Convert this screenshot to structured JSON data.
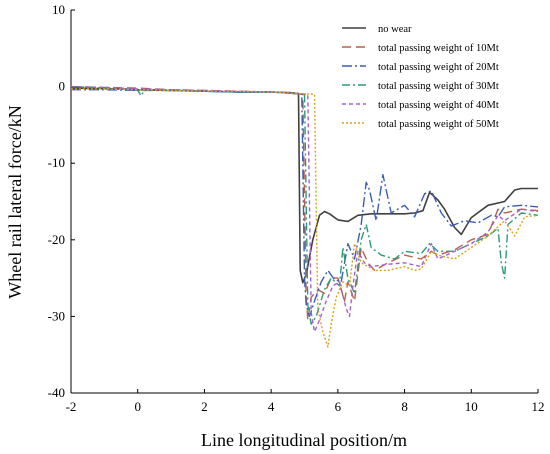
{
  "chart_data": {
    "type": "line",
    "title": "",
    "xlabel": "Line longitudinal position/m",
    "ylabel": "Wheel rail lateral force/kN",
    "xlim": [
      -2,
      12
    ],
    "ylim": [
      -40,
      10
    ],
    "xticks": [
      -2,
      0,
      2,
      4,
      6,
      8,
      10,
      12
    ],
    "yticks": [
      10,
      0,
      -10,
      -20,
      -30,
      -40
    ],
    "grid": false,
    "legend_position": "top-right",
    "series": [
      {
        "name": "no wear",
        "color": "#404040",
        "dash": "solid",
        "x": [
          -2,
          -0.5,
          0,
          1,
          2,
          3,
          4,
          4.6,
          4.82,
          4.87,
          4.95,
          5.05,
          5.25,
          5.45,
          5.6,
          5.75,
          6,
          6.3,
          6.6,
          7,
          7.5,
          8,
          8.3,
          8.55,
          8.75,
          9,
          9.2,
          9.5,
          9.7,
          10,
          10.5,
          11,
          11.3,
          11.5,
          12
        ],
        "y": [
          -0.2,
          -0.3,
          -0.4,
          -0.5,
          -0.6,
          -0.7,
          -0.7,
          -0.8,
          -0.9,
          -24,
          -25.6,
          -24.5,
          -20,
          -16.8,
          -16.3,
          -16.6,
          -17.4,
          -17.6,
          -16.8,
          -16.6,
          -16.6,
          -16.6,
          -16.5,
          -16.2,
          -13.8,
          -14.8,
          -16,
          -18.4,
          -19.3,
          -17.1,
          -15.5,
          -15,
          -13.5,
          -13.3,
          -13.3
        ]
      },
      {
        "name": "total passing weight of 10Mt",
        "color": "#b8614a",
        "dash": "9,5",
        "x": [
          -2,
          -1,
          0,
          0.5,
          1,
          2,
          3,
          4,
          4.7,
          4.95,
          5.05,
          5.1,
          5.2,
          5.4,
          5.6,
          5.8,
          6,
          6.2,
          6.3,
          6.5,
          6.7,
          6.9,
          7.1,
          7.5,
          8,
          8.5,
          8.8,
          9,
          9.5,
          10,
          10.5,
          10.8,
          11,
          11.5,
          12
        ],
        "y": [
          0,
          -0.1,
          -0.2,
          -0.3,
          -0.4,
          -0.5,
          -0.6,
          -0.7,
          -0.9,
          -1,
          -27.5,
          -30.5,
          -27.5,
          -26.5,
          -27,
          -25,
          -25,
          -28,
          -25.5,
          -28,
          -21,
          -23,
          -24,
          -23,
          -22,
          -22.5,
          -21.5,
          -22,
          -21.3,
          -20,
          -19.3,
          -16,
          -16.5,
          -16,
          -16.2
        ]
      },
      {
        "name": "total passing weight of 20Mt",
        "color": "#3a5db5",
        "dash": "10,3,2,3",
        "x": [
          -2,
          -1,
          0,
          1,
          2,
          3,
          4,
          4.7,
          4.92,
          5,
          5.05,
          5.15,
          5.3,
          5.5,
          5.7,
          5.9,
          6.1,
          6.3,
          6.5,
          6.7,
          6.85,
          6.95,
          7.15,
          7.35,
          7.6,
          8,
          8.3,
          8.6,
          8.8,
          9.1,
          9.4,
          9.8,
          10.2,
          10.6,
          10.8,
          11,
          11.5,
          12
        ],
        "y": [
          -0.4,
          -0.4,
          -0.5,
          -0.5,
          -0.6,
          -0.7,
          -0.7,
          -0.9,
          -1,
          -25,
          -28.5,
          -30,
          -28,
          -25.5,
          -24,
          -25.2,
          -25.5,
          -20.5,
          -22.5,
          -18,
          -12.5,
          -13.5,
          -17.5,
          -11.5,
          -16.5,
          -15.5,
          -17,
          -14,
          -13.6,
          -16.5,
          -18.2,
          -17.5,
          -17.8,
          -16.8,
          -17,
          -15.7,
          -15.5,
          -15.7
        ]
      },
      {
        "name": "total passing weight of 30Mt",
        "color": "#2a9a78",
        "dash": "8,3,2,3",
        "x": [
          -2,
          -1,
          0,
          0.1,
          0.2,
          0.5,
          1,
          2,
          3,
          4,
          4.7,
          5,
          5.1,
          5.2,
          5.35,
          5.6,
          5.8,
          6.05,
          6.15,
          6.3,
          6.5,
          6.7,
          6.85,
          7,
          7.3,
          7.7,
          8,
          8.5,
          8.75,
          9,
          9.5,
          10,
          10.5,
          10.8,
          10.9,
          11,
          11.1,
          11.5,
          12
        ],
        "y": [
          0,
          -0.2,
          -0.5,
          -1.2,
          -0.5,
          -0.4,
          -0.5,
          -0.6,
          -0.7,
          -0.7,
          -0.9,
          -1,
          -28.5,
          -31,
          -30,
          -26.5,
          -25,
          -26,
          -21,
          -25,
          -27,
          -20,
          -18,
          -21,
          -22,
          -22.5,
          -21.5,
          -21.8,
          -20.5,
          -21.5,
          -21.5,
          -20.5,
          -19.5,
          -18.5,
          -23,
          -25,
          -18,
          -16.5,
          -16.8
        ]
      },
      {
        "name": "total passing weight of 40Mt",
        "color": "#a55fd0",
        "dash": "4,3",
        "x": [
          -2,
          -1,
          0,
          1,
          2,
          3,
          4,
          4.8,
          5.1,
          5.2,
          5.3,
          5.45,
          5.65,
          5.85,
          6.05,
          6.25,
          6.35,
          6.45,
          6.6,
          6.8,
          7,
          7.5,
          8,
          8.5,
          8.8,
          9,
          9.5,
          10,
          10.5,
          10.8,
          11,
          11.5,
          12
        ],
        "y": [
          0,
          -0.1,
          -0.3,
          -0.4,
          -0.5,
          -0.6,
          -0.7,
          -0.9,
          -1,
          -29.5,
          -32,
          -30.5,
          -28,
          -26,
          -25.5,
          -29,
          -30,
          -26,
          -21.5,
          -23,
          -23.5,
          -23.2,
          -23,
          -23.5,
          -20.5,
          -22.5,
          -21.5,
          -20.5,
          -19,
          -16.8,
          -17.5,
          -16,
          -16.3
        ]
      },
      {
        "name": "total passing weight of 50Mt",
        "color": "#e09e1a",
        "dash": "2,2",
        "x": [
          -2,
          -1,
          0,
          1,
          2,
          3,
          4,
          4.8,
          5.3,
          5.4,
          5.55,
          5.7,
          5.8,
          5.95,
          6.15,
          6.35,
          6.5,
          6.7,
          6.9,
          7.1,
          7.5,
          8,
          8.3,
          8.5,
          8.8,
          9,
          9.5,
          10,
          10.5,
          11,
          11.3,
          11.6,
          12
        ],
        "y": [
          -0.3,
          -0.3,
          -0.4,
          -0.5,
          -0.6,
          -0.6,
          -0.7,
          -0.9,
          -1,
          -29,
          -32,
          -34,
          -31,
          -27.5,
          -25.5,
          -26,
          -20.5,
          -23,
          -23.5,
          -24,
          -24,
          -23.5,
          -24,
          -23.8,
          -21.5,
          -22,
          -22.5,
          -21,
          -19.5,
          -17.5,
          -19.5,
          -17,
          -16.8
        ]
      }
    ]
  }
}
